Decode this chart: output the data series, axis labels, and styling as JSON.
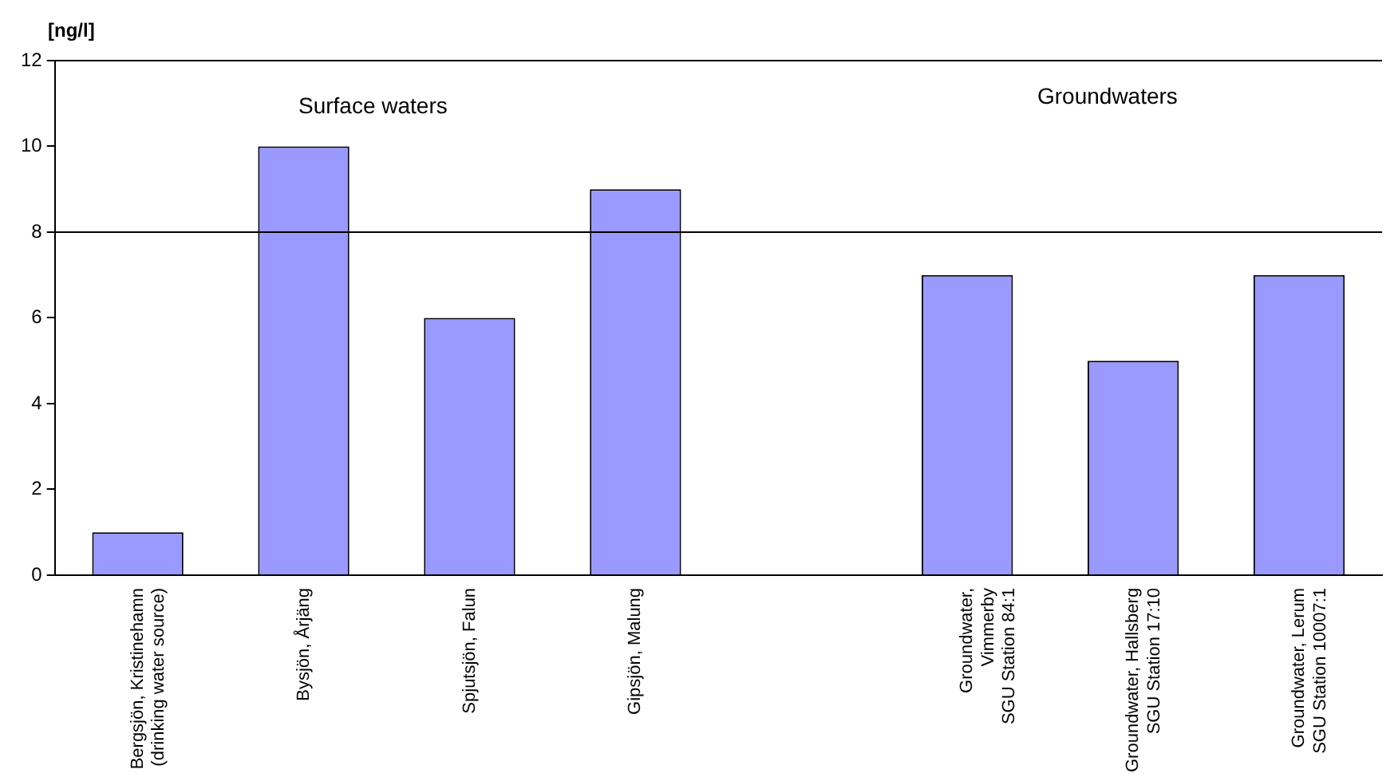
{
  "chart_data": {
    "type": "bar",
    "ylabel": "[ng/l]",
    "categories": [
      "Bergsjön, Kristinehamn\n(drinking water source)",
      "Bysjön, Årjäng",
      "Spjutsjön, Falun",
      "Gipsjön, Malung",
      null,
      "Groundwater,\nVimmerby\nSGU Station 84:1",
      "Groundwater, Hallsberg\nSGU Station 17:10",
      "Groundwater, Lerum\nSGU Station 10007:1"
    ],
    "values": [
      1,
      10,
      6,
      9,
      null,
      7,
      5,
      7
    ],
    "color": "#9999ff",
    "ylim": [
      0,
      12
    ],
    "yticks": [
      0,
      2,
      4,
      6,
      8,
      10,
      12
    ],
    "grid": false,
    "legend": false,
    "ref_lines": [
      {
        "axis": "y",
        "value": 8,
        "color": "#000000"
      }
    ],
    "annotations": [
      "Surface waters",
      "Groundwaters"
    ]
  }
}
